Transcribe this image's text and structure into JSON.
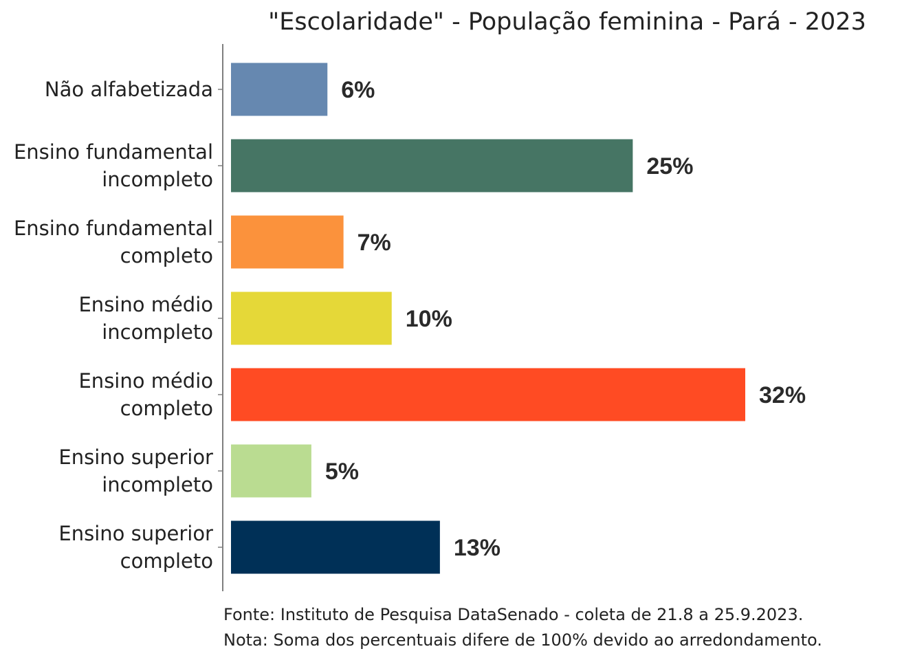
{
  "chart_data": {
    "type": "bar",
    "orientation": "horizontal",
    "title": "\"Escolaridade\" - População feminina - Pará - 2023",
    "categories": [
      [
        "Não alfabetizada"
      ],
      [
        "Ensino fundamental",
        "incompleto"
      ],
      [
        "Ensino fundamental",
        "completo"
      ],
      [
        "Ensino médio",
        "incompleto"
      ],
      [
        "Ensino médio",
        "completo"
      ],
      [
        "Ensino superior",
        "incompleto"
      ],
      [
        "Ensino superior",
        "completo"
      ]
    ],
    "values": [
      6,
      25,
      7,
      10,
      32,
      5,
      13
    ],
    "value_labels": [
      "6%",
      "25%",
      "7%",
      "10%",
      "32%",
      "5%",
      "13%"
    ],
    "colors": [
      "#6688b0",
      "#467564",
      "#fb923c",
      "#e5d838",
      "#ff4b23",
      "#badc91",
      "#003057"
    ],
    "xlim": [
      0,
      32
    ],
    "grid": false,
    "legend": "none"
  },
  "footnotes": {
    "source": "Fonte: Instituto de Pesquisa DataSenado - coleta de 21.8 a 25.9.2023.",
    "note": "Nota: Soma dos percentuais difere de 100% devido ao arredondamento."
  }
}
